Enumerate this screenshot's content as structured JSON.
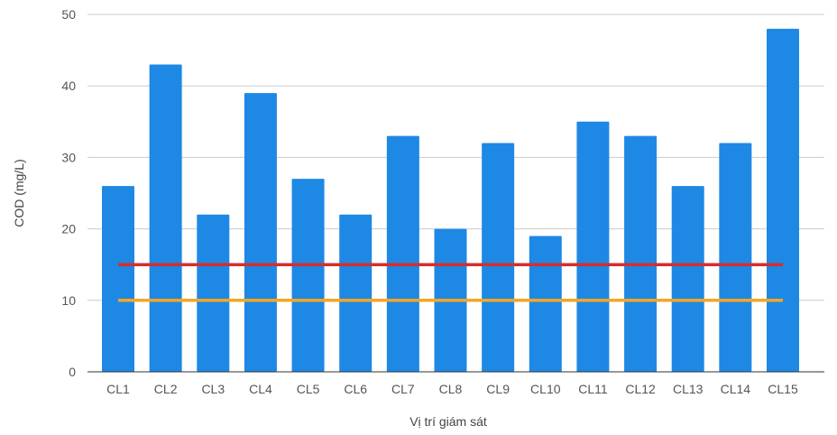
{
  "chart_data": {
    "type": "bar",
    "xlabel": "Vị trí giám sát",
    "ylabel": "COD (mg/L)",
    "ylim": [
      0,
      50
    ],
    "y_ticks": [
      "0",
      "10",
      "20",
      "30",
      "40",
      "50"
    ],
    "grid": true,
    "categories": [
      "CL1",
      "CL2",
      "CL3",
      "CL4",
      "CL5",
      "CL6",
      "CL7",
      "CL8",
      "CL9",
      "CL10",
      "CL11",
      "CL12",
      "CL13",
      "CL14",
      "CL15"
    ],
    "series": [
      {
        "type": "bar",
        "values": [
          26,
          43,
          22,
          39,
          27,
          22,
          33,
          20,
          32,
          19,
          35,
          33,
          26,
          32,
          48
        ]
      },
      {
        "type": "line",
        "values": [
          15,
          15,
          15,
          15,
          15,
          15,
          15,
          15,
          15,
          15,
          15,
          15,
          15,
          15,
          15
        ]
      },
      {
        "type": "line",
        "values": [
          10,
          10,
          10,
          10,
          10,
          10,
          10,
          10,
          10,
          10,
          10,
          10,
          10,
          10,
          10
        ]
      }
    ],
    "colors": {
      "bar": "#1e88e5",
      "line_red": "#d32f2f",
      "line_orange": "#f5a623",
      "grid": "#cccccc",
      "axis": "#333333"
    }
  }
}
